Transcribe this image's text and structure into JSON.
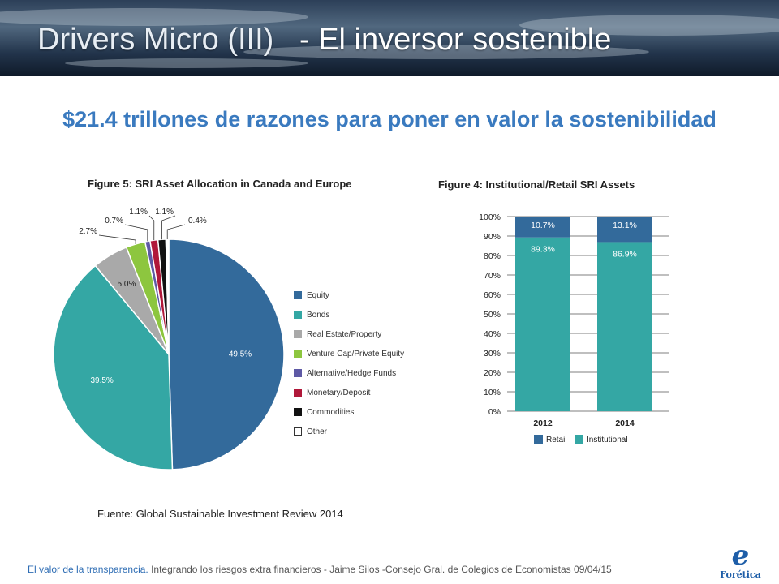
{
  "header": {
    "title_part1": "Drivers Micro (III)",
    "title_part2": "- El inversor sostenible"
  },
  "subtitle": "$21.4 trillones de razones para poner en valor la sostenibilidad",
  "chart_data": [
    {
      "type": "pie",
      "title": "Figure 5: SRI Asset Allocation in Canada and Europe",
      "categories": [
        "Equity",
        "Bonds",
        "Real Estate/Property",
        "Venture Cap/Private Equity",
        "Alternative/Hedge Funds",
        "Monetary/Deposit",
        "Commodities",
        "Other"
      ],
      "values": [
        49.5,
        39.5,
        5.0,
        2.7,
        0.7,
        1.1,
        1.1,
        0.4
      ],
      "labels": [
        "49.5%",
        "39.5%",
        "5.0%",
        "2.7%",
        "0.7%",
        "1.1%",
        "1.1%",
        "0.4%"
      ],
      "colors": [
        "#336a9b",
        "#34a7a4",
        "#a9a9a9",
        "#8dc63f",
        "#5e59a5",
        "#b0183a",
        "#111111",
        "#ffffff"
      ],
      "legend_position": "right"
    },
    {
      "type": "bar",
      "stacked": true,
      "title": "Figure 4: Institutional/Retail SRI Assets",
      "categories": [
        "2012",
        "2014"
      ],
      "series": [
        {
          "name": "Institutional",
          "values": [
            89.3,
            86.9
          ],
          "labels": [
            "89.3%",
            "86.9%"
          ],
          "color": "#34a7a4"
        },
        {
          "name": "Retail",
          "values": [
            10.7,
            13.1
          ],
          "labels": [
            "10.7%",
            "13.1%"
          ],
          "color": "#336a9b"
        }
      ],
      "legend_order": [
        "Retail",
        "Institutional"
      ],
      "ylim": [
        0,
        100
      ],
      "yticks": [
        "0%",
        "10%",
        "20%",
        "30%",
        "40%",
        "50%",
        "60%",
        "70%",
        "80%",
        "90%",
        "100%"
      ],
      "grid": true,
      "legend_position": "bottom"
    }
  ],
  "source": "Fuente: Global Sustainable Investment Review 2014",
  "footer": {
    "part1": "El valor de la transparencia.",
    "part2": " Integrando los riesgos extra financieros",
    "part3": "  - Jaime Silos  -Consejo Gral. de Colegios de Economistas 09/04/15"
  },
  "logo": {
    "mark": "e",
    "name": "Forética"
  }
}
